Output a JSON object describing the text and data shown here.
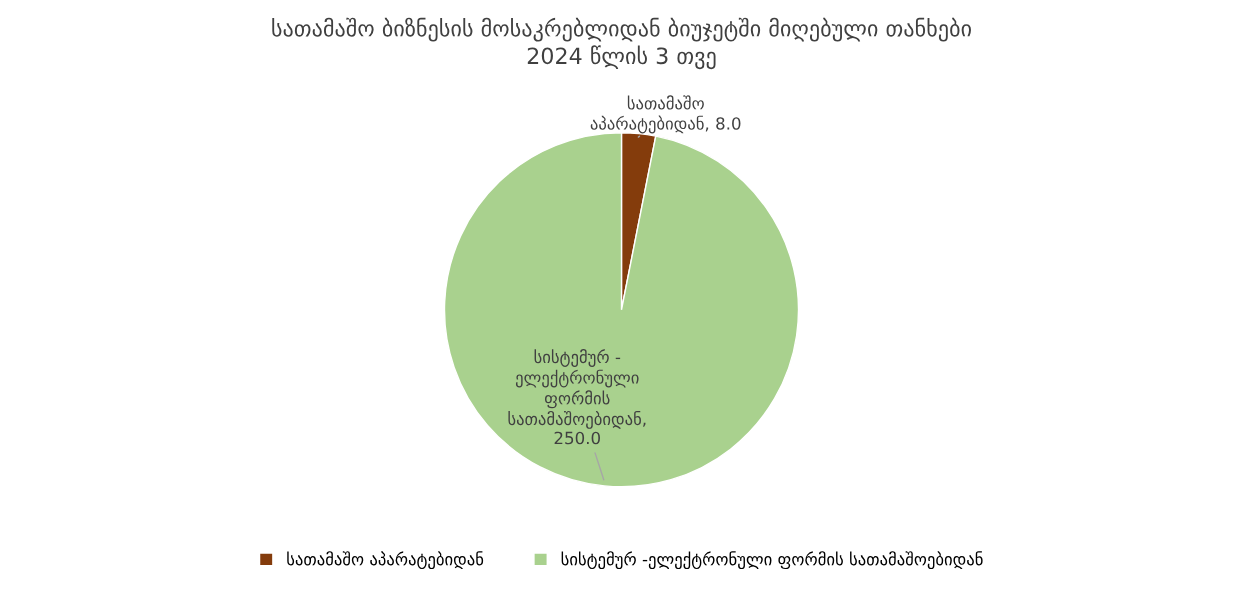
{
  "chart_data": {
    "type": "pie",
    "title": "სათამაშო ბიზნესის მოსაკრებლიდან ბიუჯეტში მიღებული თანხები\n2024 წლის 3 თვე",
    "categories": [
      "სათამაშო აპარატებიდან",
      "სისტემურ -ელექტრონული ფორმის სათამაშოებიდან"
    ],
    "values": [
      8.0,
      250.0
    ],
    "value_labels": [
      "სათამაშო\nაპარატებიდან, 8.0",
      "სისტემურ -\nელექტრონული\nფორმის\nსათამაშოებიდან,\n250.0"
    ],
    "colors": [
      "#843c0c",
      "#a9d18e"
    ],
    "legend": "bottom"
  }
}
